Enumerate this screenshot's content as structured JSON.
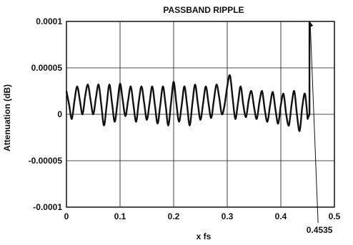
{
  "chart_data": {
    "type": "line",
    "title": "PASSBAND RIPPLE",
    "xlabel": "x fs",
    "ylabel": "Attenuation (dB)",
    "xlim": [
      0,
      0.5
    ],
    "ylim": [
      0.0001,
      -0.0001
    ],
    "y_axis_inverted": true,
    "grid": true,
    "legend": "none",
    "x_ticks": [
      0,
      0.1,
      0.2,
      0.3,
      0.4,
      0.5
    ],
    "x_tick_labels": [
      "0",
      "0.1",
      "0.2",
      "0.3",
      "0.4",
      "0.5"
    ],
    "y_ticks": [
      -0.0001,
      -5e-05,
      0,
      5e-05,
      0.0001
    ],
    "y_tick_labels": [
      "-0.0001",
      "-0.00005",
      "0",
      "0.00005",
      "0.0001"
    ],
    "annotation": {
      "text": "0.4535",
      "x": 0.4535,
      "y": 0.0001
    },
    "series": [
      {
        "x": [
          0.0,
          0.005,
          0.01,
          0.015,
          0.02,
          0.025,
          0.03,
          0.035,
          0.04,
          0.045,
          0.05,
          0.055,
          0.06,
          0.065,
          0.07,
          0.075,
          0.08,
          0.085,
          0.09,
          0.095,
          0.1,
          0.105,
          0.11,
          0.115,
          0.12,
          0.125,
          0.13,
          0.135,
          0.14,
          0.145,
          0.15,
          0.155,
          0.16,
          0.165,
          0.17,
          0.175,
          0.18,
          0.185,
          0.19,
          0.195,
          0.2,
          0.205,
          0.21,
          0.215,
          0.22,
          0.225,
          0.23,
          0.235,
          0.24,
          0.245,
          0.25,
          0.255,
          0.26,
          0.265,
          0.27,
          0.275,
          0.28,
          0.285,
          0.29,
          0.295,
          0.3,
          0.305,
          0.31,
          0.315,
          0.32,
          0.325,
          0.33,
          0.335,
          0.34,
          0.345,
          0.35,
          0.355,
          0.36,
          0.365,
          0.37,
          0.375,
          0.38,
          0.385,
          0.39,
          0.395,
          0.4,
          0.405,
          0.41,
          0.415,
          0.42,
          0.425,
          0.43,
          0.435,
          0.44,
          0.445,
          0.45,
          0.4535,
          0.4535
        ],
        "y": [
          2.5e-05,
          1e-05,
          -5e-06,
          1.5e-05,
          3e-05,
          1.5e-05,
          0.0,
          2e-05,
          3.2e-05,
          1.5e-05,
          0.0,
          1.8e-05,
          3.2e-05,
          1e-05,
          -1.2e-05,
          1e-05,
          3.2e-05,
          1.2e-05,
          -8e-06,
          1.2e-05,
          3.3e-05,
          1.5e-05,
          -2e-06,
          1.5e-05,
          3e-05,
          1e-05,
          -8e-06,
          1.4e-05,
          3e-05,
          1.2e-05,
          -6e-06,
          1.2e-05,
          3e-05,
          1e-05,
          -1e-05,
          1e-05,
          3e-05,
          1e-05,
          -1.2e-05,
          1.2e-05,
          3.5e-05,
          1.2e-05,
          -8e-06,
          1e-05,
          3e-05,
          1e-05,
          -1.2e-05,
          1.2e-05,
          3.2e-05,
          1.2e-05,
          -6e-06,
          1.2e-05,
          3e-05,
          1.2e-05,
          -4e-06,
          1.5e-05,
          3.2e-05,
          1.8e-05,
          0.0,
          1e-05,
          3e-05,
          4.2e-05,
          1.8e-05,
          -5e-06,
          1.2e-05,
          3e-05,
          1e-05,
          -3e-06,
          1.5e-05,
          2.5e-05,
          8e-06,
          -5e-06,
          1.3e-05,
          2.5e-05,
          5e-06,
          -8e-06,
          1e-05,
          2.4e-05,
          5e-06,
          -1e-05,
          1e-05,
          2.2e-05,
          0.0,
          -1.2e-05,
          1e-05,
          2.5e-05,
          0.0,
          -1.8e-05,
          8e-06,
          2.2e-05,
          -5e-06,
          0.0,
          0.0001
        ]
      }
    ]
  }
}
